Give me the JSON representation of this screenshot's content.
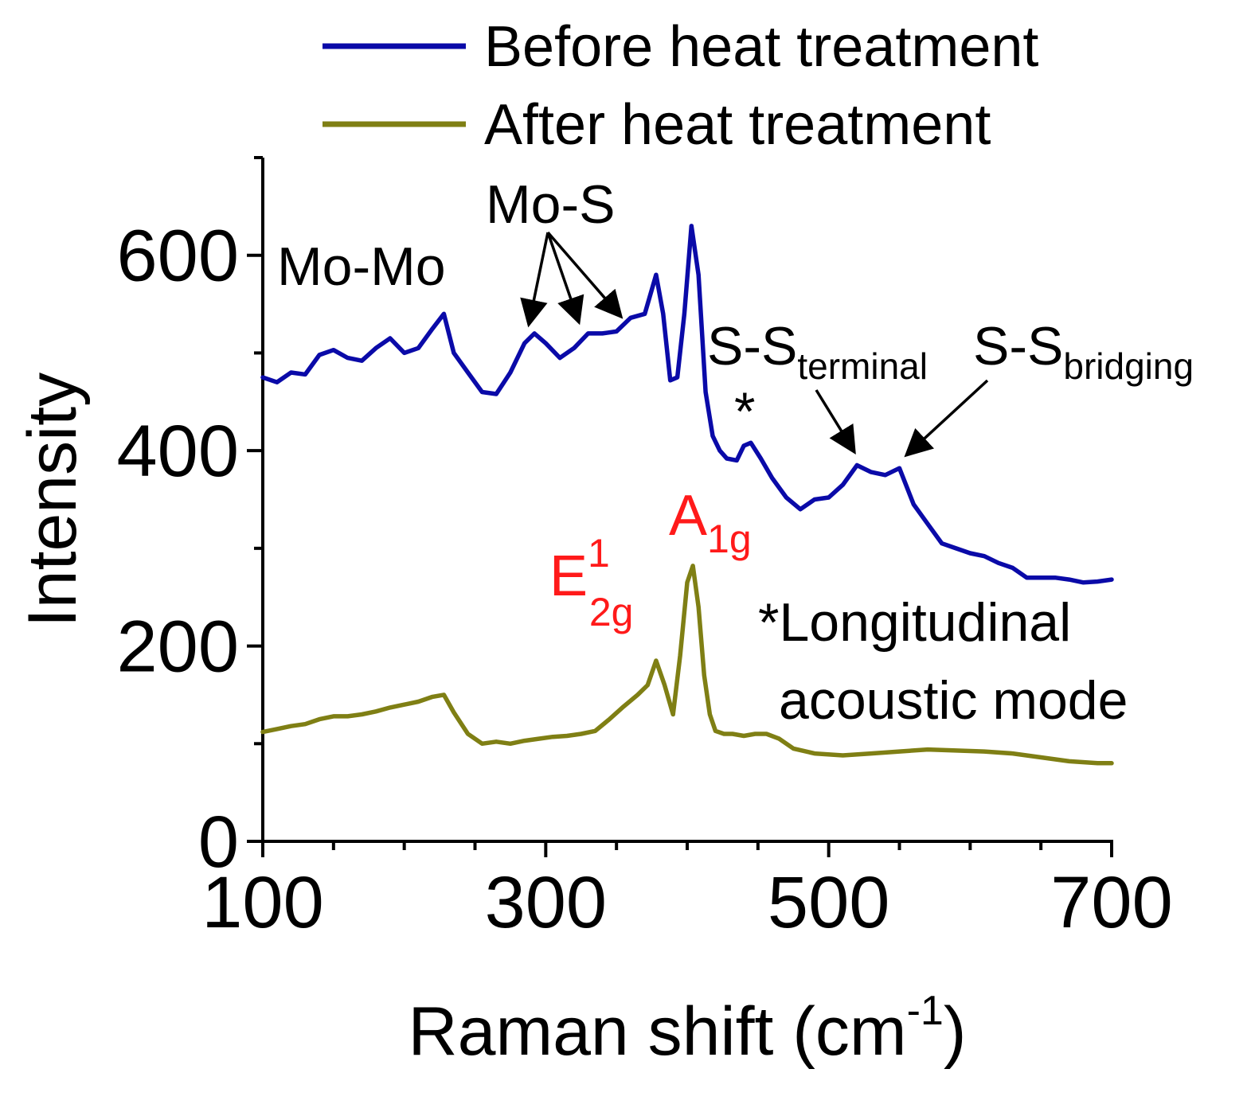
{
  "chart_data": {
    "type": "line",
    "xlabel_main": "Raman shift (cm",
    "xlabel_sup": "-1",
    "xlabel_end": ")",
    "ylabel": "Intensity",
    "xlim": [
      100,
      700
    ],
    "ylim": [
      0,
      700
    ],
    "xticks": [
      100,
      300,
      500,
      700
    ],
    "yticks": [
      0,
      200,
      400,
      600
    ],
    "grid": false,
    "legend_position": "top",
    "colors": {
      "before": "#0a0aa8",
      "after": "#7f7f14",
      "annotation_red": "#ff1a1a"
    },
    "series": [
      {
        "name": "Before heat treatment",
        "x": [
          100,
          110,
          120,
          130,
          140,
          150,
          160,
          170,
          180,
          190,
          200,
          210,
          220,
          228,
          235,
          245,
          255,
          265,
          275,
          285,
          292,
          300,
          310,
          320,
          330,
          340,
          350,
          360,
          370,
          378,
          383,
          388,
          393,
          398,
          403,
          408,
          413,
          418,
          423,
          428,
          435,
          440,
          445,
          452,
          460,
          470,
          480,
          490,
          500,
          510,
          520,
          530,
          540,
          550,
          560,
          570,
          580,
          590,
          600,
          610,
          620,
          630,
          640,
          650,
          660,
          670,
          680,
          690,
          700
        ],
        "values": [
          475,
          470,
          480,
          478,
          498,
          503,
          495,
          492,
          505,
          515,
          500,
          505,
          525,
          540,
          500,
          480,
          460,
          458,
          480,
          510,
          520,
          510,
          495,
          505,
          520,
          520,
          522,
          536,
          540,
          580,
          540,
          472,
          475,
          540,
          630,
          580,
          460,
          415,
          400,
          392,
          390,
          405,
          408,
          392,
          372,
          352,
          340,
          350,
          352,
          365,
          385,
          378,
          375,
          382,
          345,
          325,
          305,
          300,
          295,
          292,
          285,
          280,
          270,
          270,
          270,
          268,
          265,
          266,
          268
        ]
      },
      {
        "name": "After heat treatment",
        "x": [
          100,
          110,
          120,
          130,
          140,
          150,
          160,
          170,
          180,
          190,
          200,
          210,
          220,
          228,
          235,
          245,
          255,
          265,
          275,
          285,
          295,
          305,
          315,
          325,
          335,
          345,
          355,
          365,
          372,
          378,
          384,
          390,
          395,
          400,
          404,
          408,
          412,
          416,
          420,
          426,
          432,
          440,
          448,
          456,
          465,
          475,
          490,
          510,
          530,
          550,
          570,
          590,
          610,
          630,
          650,
          670,
          690,
          700
        ],
        "values": [
          112,
          115,
          118,
          120,
          125,
          128,
          128,
          130,
          133,
          137,
          140,
          143,
          148,
          150,
          132,
          110,
          100,
          102,
          100,
          103,
          105,
          107,
          108,
          110,
          113,
          125,
          138,
          150,
          160,
          185,
          160,
          130,
          190,
          265,
          282,
          240,
          170,
          130,
          113,
          110,
          110,
          108,
          110,
          110,
          105,
          95,
          90,
          88,
          90,
          92,
          94,
          93,
          92,
          90,
          86,
          82,
          80,
          80
        ]
      }
    ],
    "annotations": {
      "mo_mo": "Mo-Mo",
      "mo_s": "Mo-S",
      "ss": "S-S",
      "terminal": "terminal",
      "bridging": "bridging",
      "star": "*",
      "e_main": "E",
      "e_sup": "1",
      "e_sub": "2g",
      "a_main": "A",
      "a_sub": "1g",
      "note_line1": "*Longitudinal",
      "note_line2": "acoustic mode"
    }
  }
}
